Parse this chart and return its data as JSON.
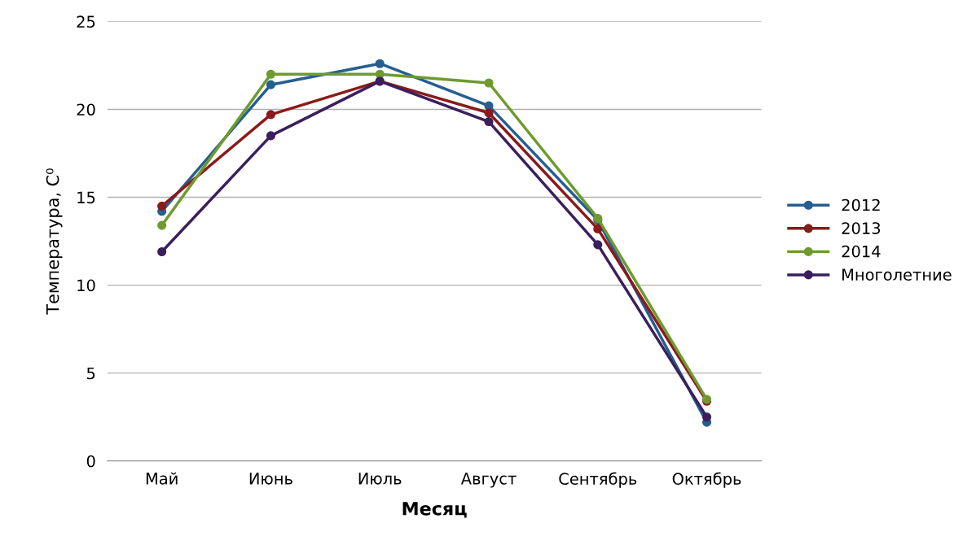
{
  "chart_data": {
    "type": "line",
    "xlabel": "Месяц",
    "ylabel": "Температура, С⁰",
    "categories": [
      "Май",
      "Июнь",
      "Июль",
      "Август",
      "Сентябрь",
      "Октябрь"
    ],
    "series": [
      {
        "name": "2012",
        "color": "#255e91",
        "values": [
          14.2,
          21.4,
          22.6,
          20.2,
          13.7,
          2.2
        ]
      },
      {
        "name": "2013",
        "color": "#8b1a1a",
        "values": [
          14.5,
          19.7,
          21.6,
          19.8,
          13.2,
          3.4
        ]
      },
      {
        "name": "2014",
        "color": "#6e9a2f",
        "values": [
          13.4,
          22.0,
          22.0,
          21.5,
          13.8,
          3.5
        ]
      },
      {
        "name": "Многолетние",
        "color": "#3b1f5c",
        "values": [
          11.9,
          18.5,
          21.6,
          19.3,
          12.3,
          2.5
        ]
      }
    ],
    "ylim": [
      0,
      25
    ],
    "yticks": [
      0,
      5,
      10,
      15,
      20,
      25
    ],
    "grid": "y",
    "legend": "right",
    "marker": "circle",
    "line_style": "solid"
  }
}
